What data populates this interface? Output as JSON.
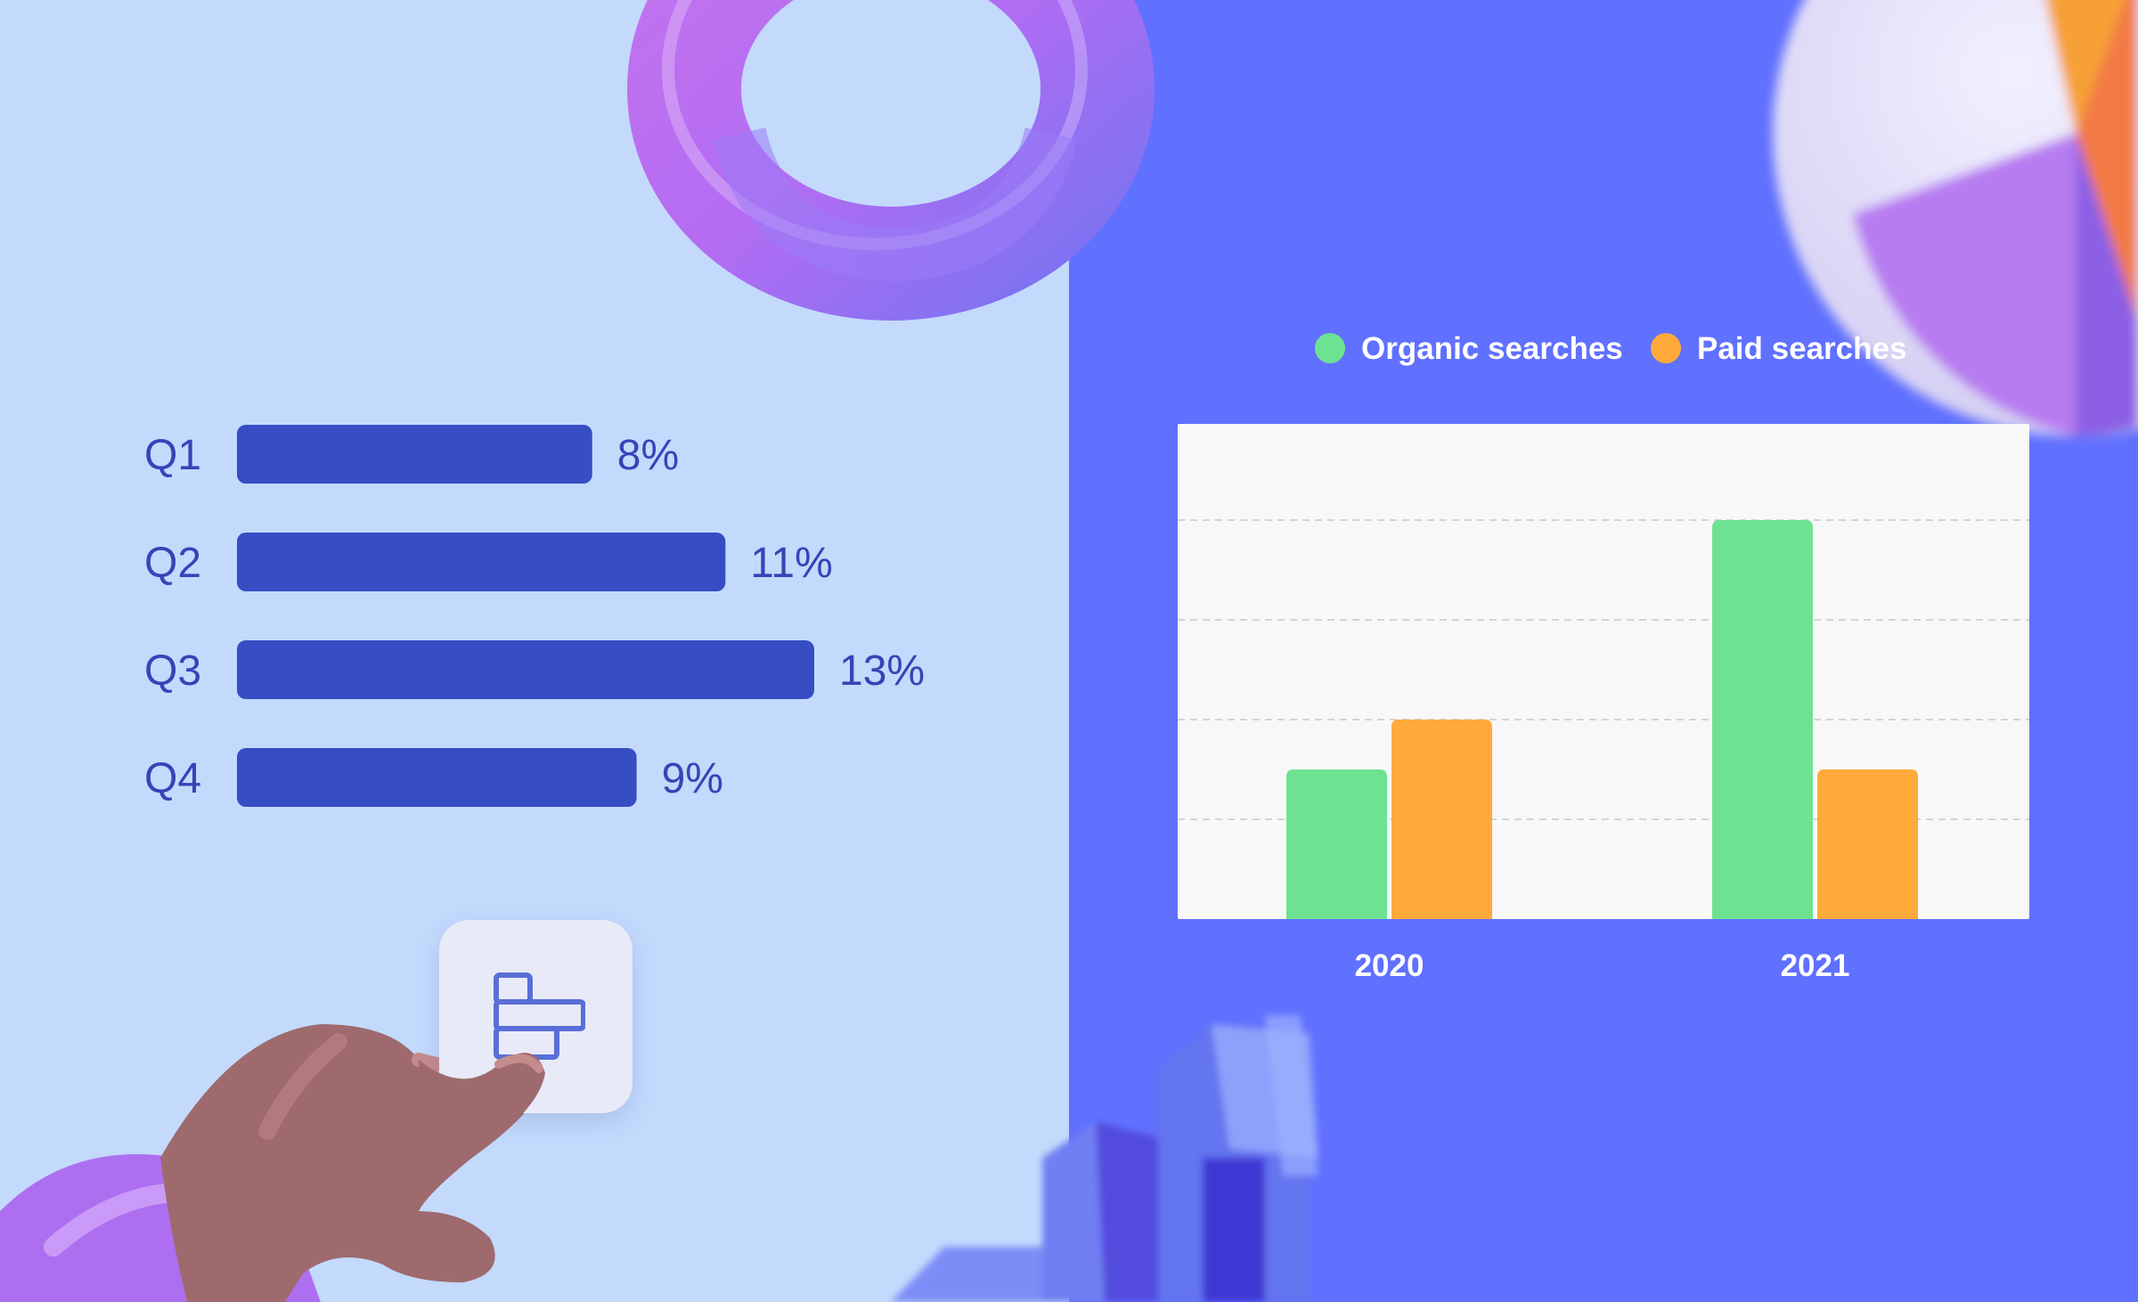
{
  "colors": {
    "left_background": "#c3dafc",
    "right_background": "#6070ff",
    "hbar_fill": "#364dc4",
    "hbar_text": "#3545b8",
    "plot_background": "#f8f8f8",
    "gridline": "#d4d4d4",
    "organic": "#6de290",
    "paid": "#ffaa3a",
    "label_white": "#ffffff"
  },
  "icons": {
    "tap_button": "horizontal-bar-chart-icon",
    "decor_ring": "donut-ring-3d-icon",
    "decor_pie": "pie-chart-3d-icon",
    "decor_columns": "column-chart-3d-icon",
    "decor_hand": "pointing-hand-icon"
  },
  "chart_data": [
    {
      "type": "bar",
      "orientation": "horizontal",
      "categories": [
        "Q1",
        "Q2",
        "Q3",
        "Q4"
      ],
      "values": [
        8,
        11,
        13,
        9
      ],
      "value_labels": [
        "8%",
        "11%",
        "13%",
        "9%"
      ],
      "xlim": [
        0,
        13
      ],
      "grid": false
    },
    {
      "type": "bar",
      "orientation": "vertical",
      "categories": [
        "2020",
        "2021"
      ],
      "series": [
        {
          "name": "Organic searches",
          "values": [
            1.5,
            4
          ]
        },
        {
          "name": "Paid searches",
          "values": [
            2,
            1.5
          ]
        }
      ],
      "ylim": [
        0,
        5
      ],
      "grid": true,
      "legend": "top"
    }
  ]
}
